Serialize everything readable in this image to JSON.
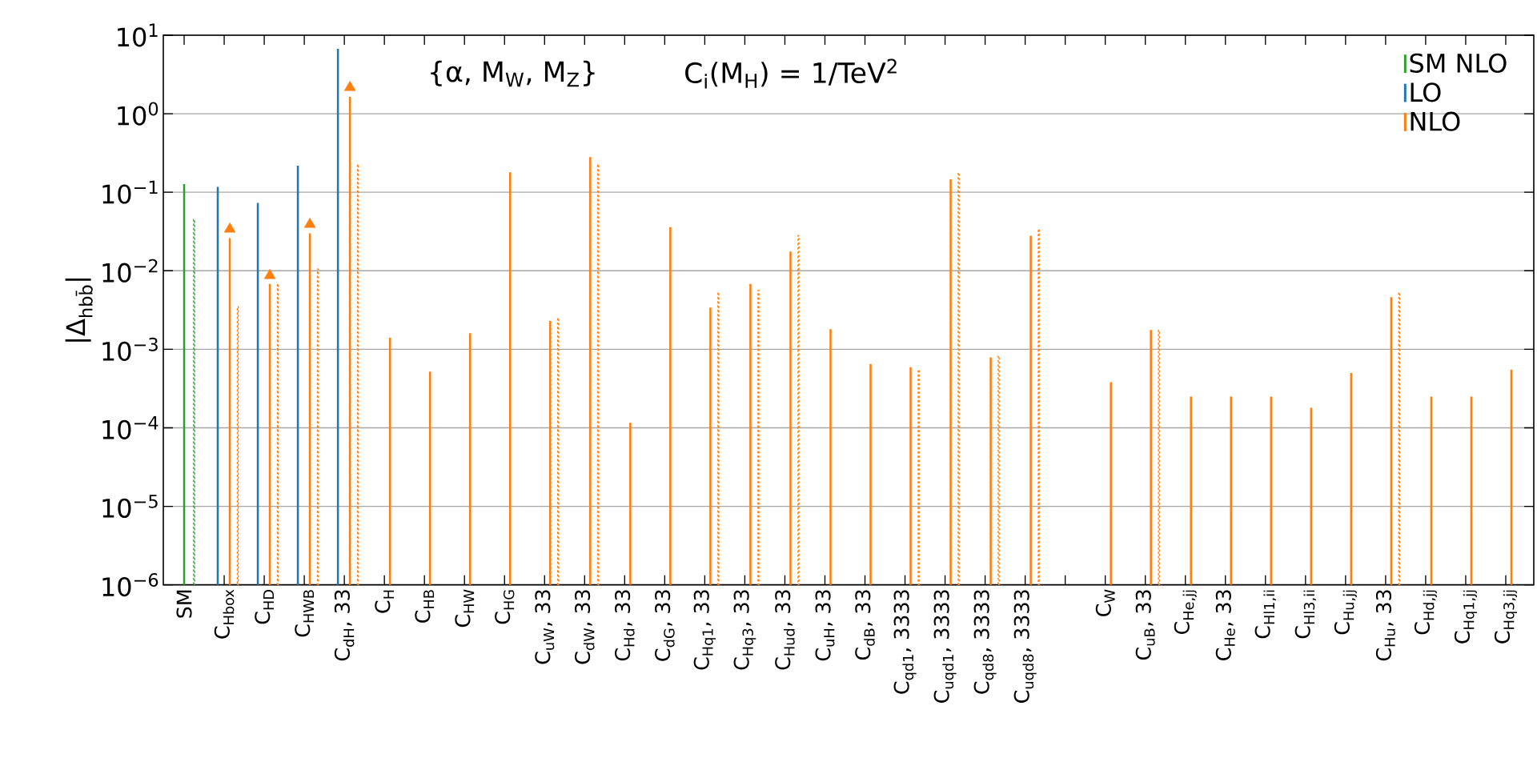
{
  "chart_data": {
    "type": "bar",
    "ylabel": "|Δ$_{hbb̄}$|",
    "annotations": [
      "{α, M$_{W}$, M$_{Z}$}",
      "C$_{i}$(M$_{H}$) = 1/TeV$^{2}$"
    ],
    "categories": [
      "SM",
      "C$_{Hbox}$",
      "C$_{HD}$",
      "C$_{HWB}$",
      "C$_{dH}$, 33",
      "C$_{H}$",
      "C$_{HB}$",
      "C$_{HW}$",
      "C$_{HG}$",
      "C$_{uW}$, 33",
      "C$_{dW}$, 33",
      "C$_{Hd}$, 33",
      "C$_{dG}$, 33",
      "C$_{Hq1}$, 33",
      "C$_{Hq3}$, 33",
      "C$_{Hud}$, 33",
      "C$_{uH}$, 33",
      "C$_{dB}$, 33",
      "C$_{qd1}$, 3333",
      "C$_{uqd1}$, 3333",
      "C$_{qd8}$, 3333",
      "C$_{uqd8}$, 3333",
      null,
      "C$_{W}$",
      "C$_{uB}$, 33",
      "C$_{He,jj}$",
      "C$_{He}$, 33",
      "C$_{Hl1,ii}$",
      "C$_{Hl3,ii}$",
      "C$_{Hu,jj}$",
      "C$_{Hu}$, 33",
      "C$_{Hd,jj}$",
      "C$_{Hq1,jj}$",
      "C$_{Hq3,jj}$"
    ],
    "series": [
      {
        "name": "SM NLO",
        "color": "#2ca02c",
        "values": [
          0.127,
          null,
          null,
          null,
          null,
          null,
          null,
          null,
          null,
          null,
          null,
          null,
          null,
          null,
          null,
          null,
          null,
          null,
          null,
          null,
          null,
          null,
          null,
          null,
          null,
          null,
          null,
          null,
          null,
          null,
          null,
          null,
          null,
          null
        ]
      },
      {
        "color": "#2ca02c",
        "line_style": "dotted",
        "values": [
          0.045,
          null,
          null,
          null,
          null,
          null,
          null,
          null,
          null,
          null,
          null,
          null,
          null,
          null,
          null,
          null,
          null,
          null,
          null,
          null,
          null,
          null,
          null,
          null,
          null,
          null,
          null,
          null,
          null,
          null,
          null,
          null,
          null,
          null
        ]
      },
      {
        "name": "LO",
        "color": "#1f77b4",
        "values": [
          null,
          0.117,
          0.073,
          0.218,
          6.7,
          null,
          null,
          null,
          null,
          null,
          null,
          null,
          null,
          null,
          null,
          null,
          null,
          null,
          null,
          null,
          null,
          null,
          null,
          null,
          null,
          null,
          null,
          null,
          null,
          null,
          null,
          null,
          null,
          null
        ]
      },
      {
        "name": "NLO",
        "color": "#ff7f0e",
        "values": [
          null,
          0.026,
          0.0068,
          0.03,
          1.64,
          0.0014,
          0.00052,
          0.0016,
          0.18,
          0.0023,
          0.28,
          0.000116,
          0.036,
          0.0034,
          0.0068,
          0.0176,
          0.0018,
          0.00065,
          0.00059,
          0.146,
          0.00079,
          0.028,
          null,
          0.00038,
          0.00176,
          0.00025,
          0.00025,
          0.00025,
          0.00018,
          0.0005,
          0.0046,
          0.00025,
          0.00025,
          0.00055
        ]
      },
      {
        "color": "#ff7f0e",
        "line_style": "dotted",
        "values": [
          null,
          0.0035,
          0.0068,
          0.0105,
          0.226,
          null,
          null,
          null,
          null,
          0.0025,
          0.226,
          null,
          null,
          0.0053,
          0.0056,
          0.028,
          null,
          null,
          0.00055,
          0.177,
          0.00082,
          0.034,
          null,
          null,
          0.00175,
          null,
          null,
          null,
          null,
          null,
          0.0053,
          null,
          null,
          null
        ]
      },
      {
        "type": "scatter",
        "color": "#ff7f0e",
        "marker": "triangle",
        "values": [
          null,
          0.034,
          0.0087,
          0.039,
          2.16,
          null,
          null,
          null,
          null,
          null,
          null,
          null,
          null,
          null,
          null,
          null,
          null,
          null,
          null,
          null,
          null,
          null,
          null,
          null,
          null,
          null,
          null,
          null,
          null,
          null,
          null,
          null,
          null,
          null
        ]
      }
    ],
    "log": "y",
    "ylim": [
      1e-06,
      10
    ],
    "yticks": [
      {
        "value": 1e-06,
        "label": "10$^{−6}$"
      },
      {
        "value": 1e-05,
        "label": "10$^{−5}$"
      },
      {
        "value": 0.0001,
        "label": "10$^{−4}$"
      },
      {
        "value": 0.001,
        "label": "10$^{−3}$"
      },
      {
        "value": 0.01,
        "label": "10$^{−2}$"
      },
      {
        "value": 0.1,
        "label": "10$^{−1}$"
      },
      {
        "value": 1,
        "label": "10$^{0}$"
      },
      {
        "value": 10,
        "label": "10$^{1}$"
      }
    ],
    "grid": "y",
    "legend": "top right"
  }
}
